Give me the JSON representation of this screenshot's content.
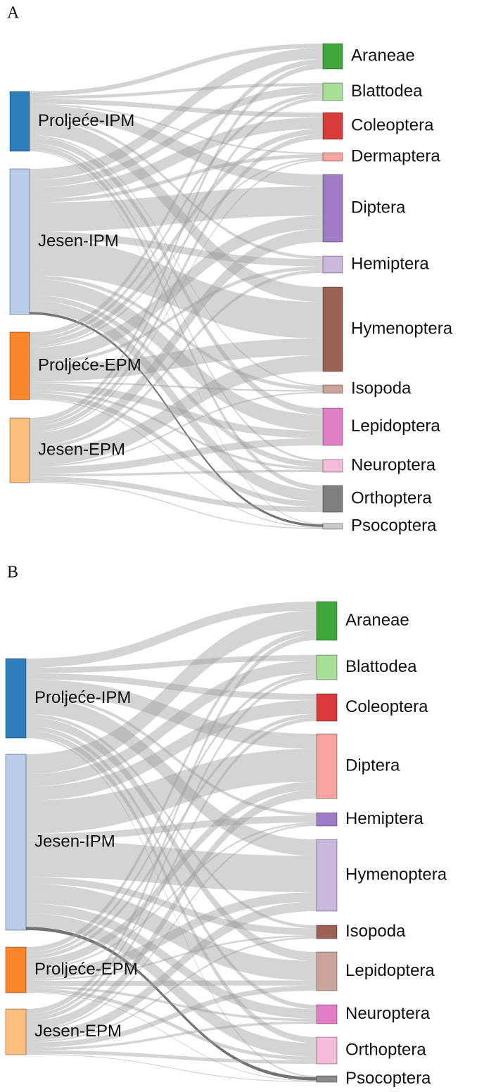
{
  "panels": [
    {
      "label": "A",
      "sources": [
        {
          "label": "Proljeće-IPM",
          "color": "#2e7ebc"
        },
        {
          "label": "Jesen-IPM",
          "color": "#b7cde9"
        },
        {
          "label": "Proljeće-EPM",
          "color": "#f9862a"
        },
        {
          "label": "Jesen-EPM",
          "color": "#fdbf80"
        }
      ],
      "targets": [
        {
          "label": "Araneae",
          "color": "#3ea63a"
        },
        {
          "label": "Blattodea",
          "color": "#a8df96"
        },
        {
          "label": "Coleoptera",
          "color": "#d93a3a"
        },
        {
          "label": "Dermaptera",
          "color": "#f7a5a3"
        },
        {
          "label": "Diptera",
          "color": "#a07cc7"
        },
        {
          "label": "Hemiptera",
          "color": "#c9b8dc"
        },
        {
          "label": "Hymenoptera",
          "color": "#9b6157"
        },
        {
          "label": "Isopoda",
          "color": "#caa39a"
        },
        {
          "label": "Lepidoptera",
          "color": "#e07fc5"
        },
        {
          "label": "Neuroptera",
          "color": "#f4bcd8"
        },
        {
          "label": "Orthoptera",
          "color": "#7f7f7f"
        },
        {
          "label": "Psocoptera",
          "color": "#c9c9c9"
        }
      ]
    },
    {
      "label": "B",
      "sources": [
        {
          "label": "Proljeće-IPM",
          "color": "#2e7ebc"
        },
        {
          "label": "Jesen-IPM",
          "color": "#b7cde9"
        },
        {
          "label": "Proljeće-EPM",
          "color": "#f9862a"
        },
        {
          "label": "Jesen-EPM",
          "color": "#fdbf80"
        }
      ],
      "targets": [
        {
          "label": "Araneae",
          "color": "#3ea63a"
        },
        {
          "label": "Blattodea",
          "color": "#a8df96"
        },
        {
          "label": "Coleoptera",
          "color": "#d93a3a"
        },
        {
          "label": "Diptera",
          "color": "#f7a5a3"
        },
        {
          "label": "Hemiptera",
          "color": "#a07cc7"
        },
        {
          "label": "Hymenoptera",
          "color": "#c9b8dc"
        },
        {
          "label": "Isopoda",
          "color": "#9b6157"
        },
        {
          "label": "Lepidoptera",
          "color": "#caa39a"
        },
        {
          "label": "Neuroptera",
          "color": "#e07fc5"
        },
        {
          "label": "Orthoptera",
          "color": "#f4bcd8"
        },
        {
          "label": "Psocoptera",
          "color": "#8c8c8c"
        }
      ]
    }
  ]
}
